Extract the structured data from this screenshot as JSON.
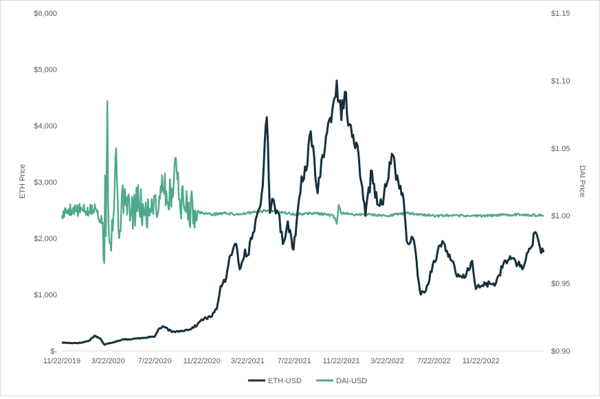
{
  "chart_data": {
    "type": "line",
    "title": "",
    "x_ticks": [
      "11/22/2019",
      "3/22/2020",
      "7/22/2020",
      "11/22/2020",
      "3/22/2021",
      "7/22/2021",
      "11/22/2021",
      "3/22/2022",
      "7/22/2022",
      "11/22/2022"
    ],
    "x_range": [
      "2019-11-22",
      "2023-05-05"
    ],
    "y_left": {
      "label": "ETH Price",
      "range": [
        0,
        6000
      ],
      "ticks": [
        "$-",
        "$1,000",
        "$2,000",
        "$3,000",
        "$4,000",
        "$5,000",
        "$6,000"
      ]
    },
    "y_right": {
      "label": "DAI Price",
      "range": [
        0.9,
        1.15
      ],
      "ticks": [
        "$0.90",
        "$0.95",
        "$1.00",
        "$1.05",
        "$1.10",
        "$1.15"
      ]
    },
    "grid": false,
    "legend_position": "bottom",
    "series": [
      {
        "name": "ETH-USD",
        "axis": "left",
        "color": "#17303f",
        "points": [
          [
            "2019-11-22",
            148
          ],
          [
            "2019-12-15",
            140
          ],
          [
            "2020-01-10",
            143
          ],
          [
            "2020-02-01",
            180
          ],
          [
            "2020-02-15",
            270
          ],
          [
            "2020-03-01",
            225
          ],
          [
            "2020-03-12",
            110
          ],
          [
            "2020-03-22",
            130
          ],
          [
            "2020-04-10",
            165
          ],
          [
            "2020-05-01",
            210
          ],
          [
            "2020-05-20",
            205
          ],
          [
            "2020-06-15",
            230
          ],
          [
            "2020-07-22",
            255
          ],
          [
            "2020-08-01",
            390
          ],
          [
            "2020-08-15",
            430
          ],
          [
            "2020-09-05",
            335
          ],
          [
            "2020-09-25",
            355
          ],
          [
            "2020-10-20",
            380
          ],
          [
            "2020-11-10",
            460
          ],
          [
            "2020-11-22",
            560
          ],
          [
            "2020-12-15",
            600
          ],
          [
            "2020-12-31",
            740
          ],
          [
            "2021-01-10",
            1150
          ],
          [
            "2021-01-25",
            1300
          ],
          [
            "2021-02-05",
            1700
          ],
          [
            "2021-02-20",
            1900
          ],
          [
            "2021-03-01",
            1450
          ],
          [
            "2021-03-15",
            1800
          ],
          [
            "2021-03-22",
            1700
          ],
          [
            "2021-04-05",
            2100
          ],
          [
            "2021-04-15",
            2400
          ],
          [
            "2021-04-25",
            2600
          ],
          [
            "2021-05-03",
            3300
          ],
          [
            "2021-05-11",
            4150
          ],
          [
            "2021-05-19",
            2450
          ],
          [
            "2021-05-25",
            2700
          ],
          [
            "2021-06-10",
            2450
          ],
          [
            "2021-06-22",
            1900
          ],
          [
            "2021-07-05",
            2300
          ],
          [
            "2021-07-20",
            1800
          ],
          [
            "2021-07-28",
            2300
          ],
          [
            "2021-08-10",
            3100
          ],
          [
            "2021-08-25",
            3300
          ],
          [
            "2021-09-03",
            3900
          ],
          [
            "2021-09-21",
            2800
          ],
          [
            "2021-10-01",
            3400
          ],
          [
            "2021-10-10",
            3600
          ],
          [
            "2021-10-21",
            4100
          ],
          [
            "2021-11-01",
            4400
          ],
          [
            "2021-11-10",
            4800
          ],
          [
            "2021-11-22",
            4100
          ],
          [
            "2021-12-01",
            4600
          ],
          [
            "2021-12-10",
            4000
          ],
          [
            "2021-12-20",
            3800
          ],
          [
            "2021-12-31",
            3700
          ],
          [
            "2022-01-10",
            3100
          ],
          [
            "2022-01-24",
            2400
          ],
          [
            "2022-02-10",
            3200
          ],
          [
            "2022-02-24",
            2600
          ],
          [
            "2022-03-08",
            2600
          ],
          [
            "2022-03-22",
            3000
          ],
          [
            "2022-04-03",
            3500
          ],
          [
            "2022-04-20",
            3000
          ],
          [
            "2022-05-01",
            2800
          ],
          [
            "2022-05-12",
            1950
          ],
          [
            "2022-05-31",
            1950
          ],
          [
            "2022-06-13",
            1200
          ],
          [
            "2022-06-18",
            1000
          ],
          [
            "2022-07-01",
            1070
          ],
          [
            "2022-07-22",
            1600
          ],
          [
            "2022-08-13",
            1950
          ],
          [
            "2022-09-07",
            1600
          ],
          [
            "2022-09-20",
            1320
          ],
          [
            "2022-10-10",
            1300
          ],
          [
            "2022-10-30",
            1600
          ],
          [
            "2022-11-09",
            1100
          ],
          [
            "2022-11-22",
            1150
          ],
          [
            "2022-12-15",
            1200
          ],
          [
            "2022-12-31",
            1200
          ],
          [
            "2023-01-20",
            1550
          ],
          [
            "2023-02-15",
            1650
          ],
          [
            "2023-03-10",
            1450
          ],
          [
            "2023-03-25",
            1750
          ],
          [
            "2023-04-15",
            2100
          ],
          [
            "2023-04-25",
            1850
          ],
          [
            "2023-05-05",
            1750
          ]
        ]
      },
      {
        "name": "DAI-USD",
        "axis": "right",
        "color": "#4fa88d",
        "points": [
          [
            "2019-11-22",
            1.0
          ],
          [
            "2019-12-10",
            1.005
          ],
          [
            "2020-01-05",
            1.004
          ],
          [
            "2020-02-01",
            1.003
          ],
          [
            "2020-02-20",
            1.005
          ],
          [
            "2020-03-08",
            0.995
          ],
          [
            "2020-03-12",
            0.965
          ],
          [
            "2020-03-14",
            1.03
          ],
          [
            "2020-03-16",
            0.985
          ],
          [
            "2020-03-20",
            1.085
          ],
          [
            "2020-03-22",
            1.01
          ],
          [
            "2020-03-26",
            0.98
          ],
          [
            "2020-04-05",
            1.0
          ],
          [
            "2020-04-12",
            1.05
          ],
          [
            "2020-04-18",
            0.99
          ],
          [
            "2020-05-05",
            1.02
          ],
          [
            "2020-05-20",
            1.0
          ],
          [
            "2020-06-10",
            1.01
          ],
          [
            "2020-06-25",
            1.0
          ],
          [
            "2020-07-10",
            1.005
          ],
          [
            "2020-07-22",
            1.015
          ],
          [
            "2020-08-01",
            1.005
          ],
          [
            "2020-08-10",
            1.03
          ],
          [
            "2020-08-25",
            1.01
          ],
          [
            "2020-09-05",
            1.02
          ],
          [
            "2020-09-15",
            1.043
          ],
          [
            "2020-09-25",
            1.012
          ],
          [
            "2020-10-15",
            1.006
          ],
          [
            "2020-11-05",
            1.004
          ],
          [
            "2020-11-22",
            1.002
          ],
          [
            "2020-12-20",
            1.001
          ],
          [
            "2021-01-20",
            1.002
          ],
          [
            "2021-02-20",
            1.001
          ],
          [
            "2021-03-22",
            1.002
          ],
          [
            "2021-05-19",
            1.004
          ],
          [
            "2021-07-22",
            1.001
          ],
          [
            "2021-09-15",
            1.002
          ],
          [
            "2021-11-01",
            1.0
          ],
          [
            "2021-11-10",
            0.994
          ],
          [
            "2021-11-15",
            1.008
          ],
          [
            "2021-11-22",
            1.002
          ],
          [
            "2021-12-15",
            1.001
          ],
          [
            "2022-02-01",
            1.001
          ],
          [
            "2022-03-22",
            1.0
          ],
          [
            "2022-05-12",
            1.002
          ],
          [
            "2022-07-22",
            1.0
          ],
          [
            "2022-11-22",
            1.0
          ],
          [
            "2023-03-10",
            1.001
          ],
          [
            "2023-05-05",
            1.0
          ]
        ]
      }
    ]
  }
}
